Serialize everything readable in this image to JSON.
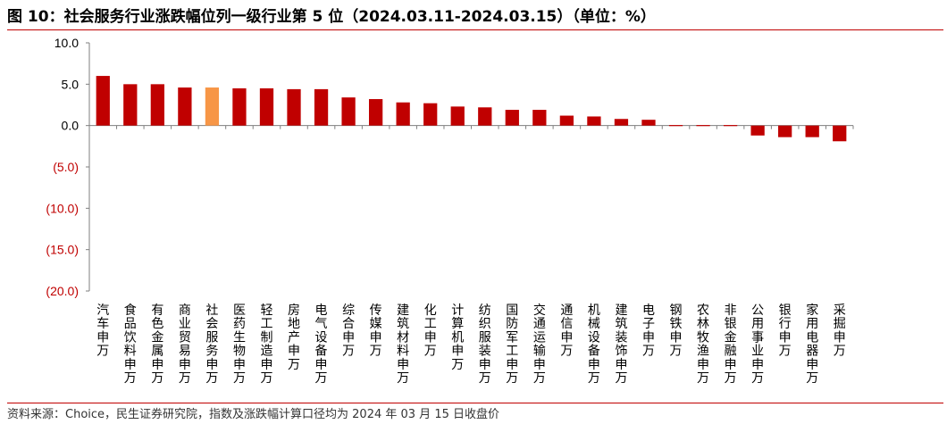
{
  "title": "图 10：社会服务行业涨跌幅位列一级行业第 5 位（2024.03.11-2024.03.15）（单位：%）",
  "source": "资料来源：Choice，民生证券研究院，指数及涨跌幅计算口径均为 2024 年 03 月 15 日收盘价",
  "chart_data": {
    "type": "bar",
    "ylim": [
      -20,
      10
    ],
    "yticks": [
      "10.0",
      "5.0",
      "0.0",
      "(5.0)",
      "(10.0)",
      "(15.0)",
      "(20.0)"
    ],
    "ytick_values": [
      10,
      5,
      0,
      -5,
      -10,
      -15,
      -20
    ],
    "grid": false,
    "categories": [
      "汽车申万",
      "食品饮料申万",
      "有色金属申万",
      "商业贸易申万",
      "社会服务申万",
      "医药生物申万",
      "轻工制造申万",
      "房地产申万",
      "电气设备申万",
      "综合申万",
      "传媒申万",
      "建筑材料申万",
      "化工申万",
      "计算机申万",
      "纺织服装申万",
      "国防军工申万",
      "交通运输申万",
      "通信申万",
      "机械设备申万",
      "建筑装饰申万",
      "电子申万",
      "钢铁申万",
      "农林牧渔申万",
      "非银金融申万",
      "公用事业申万",
      "银行申万",
      "家用电器申万",
      "采掘申万"
    ],
    "values": [
      6.0,
      5.0,
      5.0,
      4.6,
      4.6,
      4.5,
      4.5,
      4.4,
      4.4,
      3.4,
      3.2,
      2.8,
      2.7,
      2.3,
      2.2,
      1.9,
      1.9,
      1.2,
      1.1,
      0.8,
      0.7,
      0.1,
      0.1,
      -0.1,
      -1.2,
      -1.4,
      -1.4,
      -1.9
    ],
    "highlight_category": "社会服务申万",
    "colors": {
      "bar": "#c00000",
      "highlight": "#f79646",
      "positive_tick": "#000000",
      "negative_tick": "#c00000",
      "axis": "#7f7f7f",
      "rule": "#c00000"
    }
  }
}
